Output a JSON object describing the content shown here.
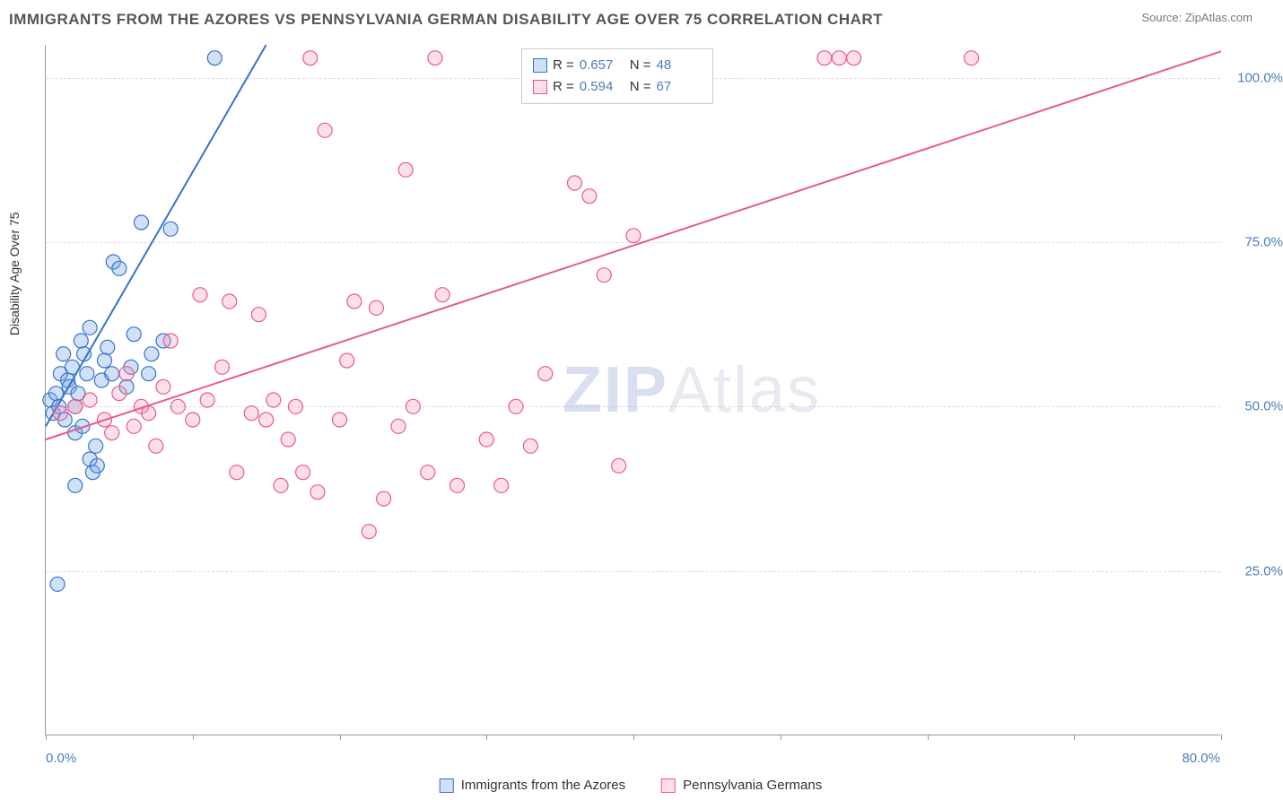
{
  "header": {
    "title": "IMMIGRANTS FROM THE AZORES VS PENNSYLVANIA GERMAN DISABILITY AGE OVER 75 CORRELATION CHART",
    "source_label": "Source: ",
    "source_value": "ZipAtlas.com"
  },
  "chart": {
    "type": "scatter",
    "ylabel": "Disability Age Over 75",
    "xlim": [
      0,
      80
    ],
    "ylim": [
      0,
      105
    ],
    "yticks": [
      25,
      50,
      75,
      100
    ],
    "ytick_labels": [
      "25.0%",
      "50.0%",
      "75.0%",
      "100.0%"
    ],
    "xtick_positions": [
      0,
      10,
      20,
      30,
      40,
      50,
      60,
      70,
      80
    ],
    "xaxis_left_label": "0.0%",
    "xaxis_right_label": "80.0%",
    "background_color": "#ffffff",
    "grid_color": "#dddddd",
    "marker_radius": 8,
    "marker_stroke_width": 1.2,
    "line_width": 2,
    "series": [
      {
        "name": "Immigrants from the Azores",
        "stroke": "#3673c9",
        "fill": "rgba(120,170,230,0.35)",
        "R": "0.657",
        "N": "48",
        "trend": {
          "x1": 0,
          "y1": 47,
          "x2": 15,
          "y2": 105
        },
        "points": [
          [
            0.3,
            51
          ],
          [
            0.5,
            49
          ],
          [
            0.7,
            52
          ],
          [
            0.9,
            50
          ],
          [
            1.0,
            55
          ],
          [
            1.2,
            58
          ],
          [
            1.3,
            48
          ],
          [
            1.5,
            54
          ],
          [
            1.6,
            53
          ],
          [
            1.8,
            56
          ],
          [
            2.0,
            50
          ],
          [
            2.0,
            46
          ],
          [
            2.2,
            52
          ],
          [
            2.4,
            60
          ],
          [
            2.5,
            47
          ],
          [
            2.6,
            58
          ],
          [
            2.8,
            55
          ],
          [
            3.0,
            62
          ],
          [
            3.0,
            42
          ],
          [
            3.2,
            40
          ],
          [
            3.4,
            44
          ],
          [
            3.5,
            41
          ],
          [
            3.8,
            54
          ],
          [
            4.0,
            57
          ],
          [
            4.2,
            59
          ],
          [
            4.5,
            55
          ],
          [
            4.6,
            72
          ],
          [
            5.0,
            71
          ],
          [
            5.5,
            53
          ],
          [
            5.8,
            56
          ],
          [
            6.0,
            61
          ],
          [
            6.5,
            78
          ],
          [
            7.0,
            55
          ],
          [
            7.2,
            58
          ],
          [
            8.0,
            60
          ],
          [
            8.5,
            77
          ],
          [
            0.8,
            23
          ],
          [
            2.0,
            38
          ],
          [
            11.5,
            103
          ]
        ]
      },
      {
        "name": "Pennsylvania Germans",
        "stroke": "#e85a8a",
        "fill": "rgba(245,150,185,0.3)",
        "R": "0.594",
        "N": "67",
        "trend": {
          "x1": 0,
          "y1": 45,
          "x2": 80,
          "y2": 104
        },
        "points": [
          [
            1,
            49
          ],
          [
            2,
            50
          ],
          [
            3,
            51
          ],
          [
            4,
            48
          ],
          [
            4.5,
            46
          ],
          [
            5,
            52
          ],
          [
            5.5,
            55
          ],
          [
            6,
            47
          ],
          [
            6.5,
            50
          ],
          [
            7,
            49
          ],
          [
            7.5,
            44
          ],
          [
            8,
            53
          ],
          [
            8.5,
            60
          ],
          [
            9,
            50
          ],
          [
            10,
            48
          ],
          [
            10.5,
            67
          ],
          [
            11,
            51
          ],
          [
            12,
            56
          ],
          [
            12.5,
            66
          ],
          [
            13,
            40
          ],
          [
            14,
            49
          ],
          [
            14.5,
            64
          ],
          [
            15,
            48
          ],
          [
            15.5,
            51
          ],
          [
            16,
            38
          ],
          [
            16.5,
            45
          ],
          [
            17,
            50
          ],
          [
            17.5,
            40
          ],
          [
            18,
            103
          ],
          [
            18.5,
            37
          ],
          [
            19,
            92
          ],
          [
            20,
            48
          ],
          [
            20.5,
            57
          ],
          [
            21,
            66
          ],
          [
            22,
            31
          ],
          [
            22.5,
            65
          ],
          [
            23,
            36
          ],
          [
            24,
            47
          ],
          [
            24.5,
            86
          ],
          [
            25,
            50
          ],
          [
            26,
            40
          ],
          [
            26.5,
            103
          ],
          [
            27,
            67
          ],
          [
            28,
            38
          ],
          [
            30,
            45
          ],
          [
            31,
            38
          ],
          [
            32,
            50
          ],
          [
            33,
            44
          ],
          [
            34,
            55
          ],
          [
            36,
            84
          ],
          [
            37,
            82
          ],
          [
            38,
            70
          ],
          [
            39,
            41
          ],
          [
            40,
            76
          ],
          [
            53,
            103
          ],
          [
            54,
            103
          ],
          [
            55,
            103
          ],
          [
            63,
            103
          ]
        ]
      }
    ]
  },
  "legend_box": {
    "r_label": "R =",
    "n_label": "N ="
  },
  "watermark": {
    "zip": "ZIP",
    "atlas": "Atlas"
  }
}
